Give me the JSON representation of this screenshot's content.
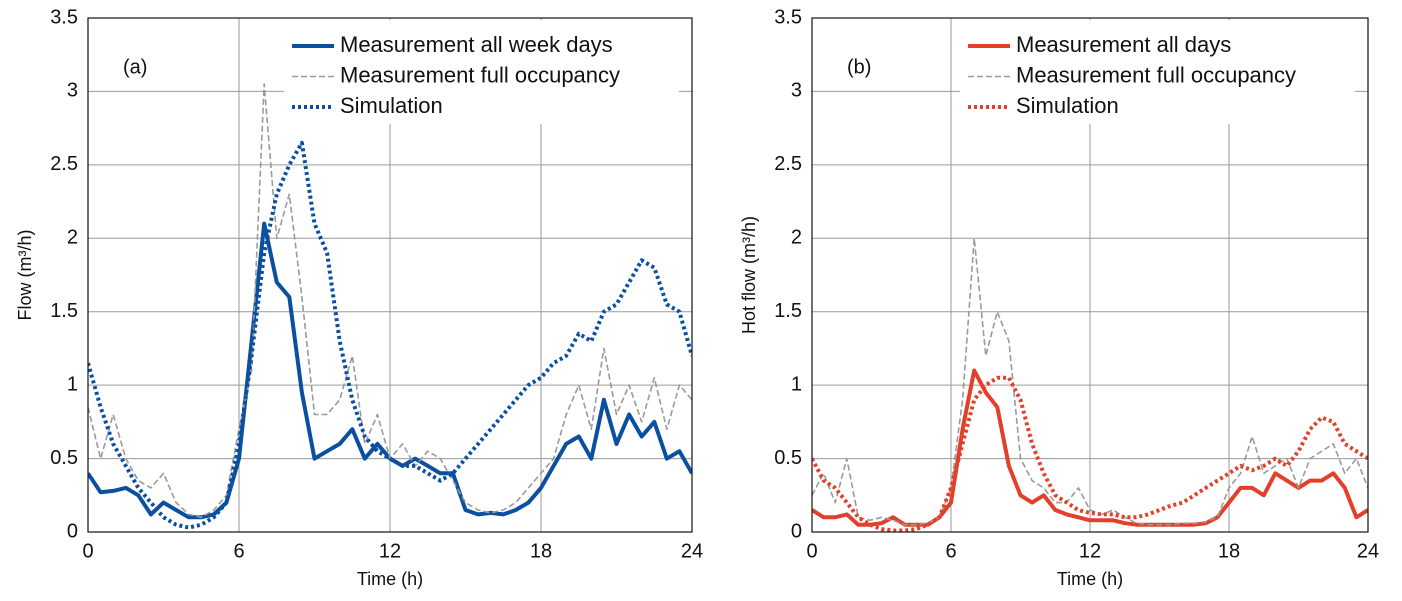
{
  "chart_data": [
    {
      "type": "line",
      "annotation": "(a)",
      "xlabel": "Time (h)",
      "ylabel": "Flow (m³/h)",
      "x": [
        0,
        0.5,
        1,
        1.5,
        2,
        2.5,
        3,
        3.5,
        4,
        4.5,
        5,
        5.5,
        6,
        6.5,
        7,
        7.5,
        8,
        8.5,
        9,
        9.5,
        10,
        10.5,
        11,
        11.5,
        12,
        12.5,
        13,
        13.5,
        14,
        14.5,
        15,
        15.5,
        16,
        16.5,
        17,
        17.5,
        18,
        18.5,
        19,
        19.5,
        20,
        20.5,
        21,
        21.5,
        22,
        22.5,
        23,
        23.5,
        24
      ],
      "xlim": [
        0,
        24
      ],
      "xticks": [
        0,
        6,
        12,
        18,
        24
      ],
      "ylim": [
        0,
        3.5
      ],
      "yticks": [
        0,
        0.5,
        1,
        1.5,
        2,
        2.5,
        3,
        3.5
      ],
      "grid": true,
      "legend": "upper right",
      "series": [
        {
          "name": "Measurement all week days",
          "color": "#0b4fa0",
          "style": "solid",
          "values": [
            0.4,
            0.27,
            0.28,
            0.3,
            0.25,
            0.12,
            0.2,
            0.15,
            0.1,
            0.1,
            0.12,
            0.2,
            0.5,
            1.3,
            2.1,
            1.7,
            1.6,
            0.95,
            0.5,
            0.55,
            0.6,
            0.7,
            0.5,
            0.6,
            0.5,
            0.45,
            0.5,
            0.45,
            0.4,
            0.4,
            0.15,
            0.12,
            0.13,
            0.12,
            0.15,
            0.2,
            0.3,
            0.45,
            0.6,
            0.65,
            0.5,
            0.9,
            0.6,
            0.8,
            0.65,
            0.75,
            0.5,
            0.55,
            0.4
          ]
        },
        {
          "name": "Measurement full occupancy",
          "color": "#9a9a9a",
          "style": "dashed",
          "values": [
            0.85,
            0.5,
            0.8,
            0.5,
            0.35,
            0.3,
            0.4,
            0.2,
            0.12,
            0.1,
            0.15,
            0.25,
            0.7,
            1.1,
            3.05,
            2.0,
            2.3,
            1.6,
            0.8,
            0.8,
            0.9,
            1.2,
            0.6,
            0.8,
            0.5,
            0.6,
            0.45,
            0.55,
            0.5,
            0.35,
            0.2,
            0.15,
            0.13,
            0.15,
            0.2,
            0.3,
            0.4,
            0.5,
            0.8,
            1.0,
            0.7,
            1.25,
            0.8,
            1.0,
            0.75,
            1.05,
            0.7,
            1.0,
            0.9
          ]
        },
        {
          "name": "Simulation",
          "color": "#0b4fa0",
          "style": "dotted",
          "values": [
            1.15,
            0.85,
            0.6,
            0.45,
            0.3,
            0.2,
            0.1,
            0.05,
            0.03,
            0.05,
            0.1,
            0.2,
            0.6,
            1.2,
            1.9,
            2.3,
            2.5,
            2.65,
            2.1,
            1.9,
            1.3,
            0.9,
            0.65,
            0.55,
            0.5,
            0.45,
            0.45,
            0.4,
            0.35,
            0.4,
            0.5,
            0.6,
            0.7,
            0.8,
            0.9,
            1.0,
            1.05,
            1.15,
            1.2,
            1.35,
            1.3,
            1.5,
            1.55,
            1.7,
            1.85,
            1.8,
            1.55,
            1.5,
            1.2
          ]
        }
      ]
    },
    {
      "type": "line",
      "annotation": "(b)",
      "xlabel": "Time (h)",
      "ylabel": "Hot flow (m³/h)",
      "x": [
        0,
        0.5,
        1,
        1.5,
        2,
        2.5,
        3,
        3.5,
        4,
        4.5,
        5,
        5.5,
        6,
        6.5,
        7,
        7.5,
        8,
        8.5,
        9,
        9.5,
        10,
        10.5,
        11,
        11.5,
        12,
        12.5,
        13,
        13.5,
        14,
        14.5,
        15,
        15.5,
        16,
        16.5,
        17,
        17.5,
        18,
        18.5,
        19,
        19.5,
        20,
        20.5,
        21,
        21.5,
        22,
        22.5,
        23,
        23.5,
        24
      ],
      "xlim": [
        0,
        24
      ],
      "xticks": [
        0,
        6,
        12,
        18,
        24
      ],
      "ylim": [
        0,
        3.5
      ],
      "yticks": [
        0,
        0.5,
        1,
        1.5,
        2,
        2.5,
        3,
        3.5
      ],
      "grid": true,
      "legend": "upper right",
      "series": [
        {
          "name": "Measurement all days",
          "color": "#e3402b",
          "style": "solid",
          "values": [
            0.15,
            0.1,
            0.1,
            0.12,
            0.05,
            0.05,
            0.06,
            0.1,
            0.05,
            0.05,
            0.05,
            0.1,
            0.2,
            0.7,
            1.1,
            0.95,
            0.85,
            0.45,
            0.25,
            0.2,
            0.25,
            0.15,
            0.12,
            0.1,
            0.08,
            0.08,
            0.08,
            0.06,
            0.05,
            0.05,
            0.05,
            0.05,
            0.05,
            0.05,
            0.06,
            0.1,
            0.2,
            0.3,
            0.3,
            0.25,
            0.4,
            0.35,
            0.3,
            0.35,
            0.35,
            0.4,
            0.3,
            0.1,
            0.15
          ]
        },
        {
          "name": "Measurement full occupancy",
          "color": "#9a9a9a",
          "style": "dashed",
          "values": [
            0.25,
            0.4,
            0.2,
            0.5,
            0.1,
            0.08,
            0.1,
            0.08,
            0.05,
            0.05,
            0.06,
            0.1,
            0.3,
            0.9,
            2.0,
            1.2,
            1.5,
            1.3,
            0.5,
            0.35,
            0.3,
            0.2,
            0.2,
            0.3,
            0.15,
            0.12,
            0.15,
            0.1,
            0.06,
            0.05,
            0.05,
            0.05,
            0.06,
            0.06,
            0.07,
            0.1,
            0.3,
            0.4,
            0.65,
            0.4,
            0.45,
            0.5,
            0.3,
            0.5,
            0.55,
            0.6,
            0.4,
            0.5,
            0.3
          ]
        },
        {
          "name": "Simulation",
          "color": "#e3402b",
          "style": "dotted",
          "values": [
            0.5,
            0.35,
            0.3,
            0.2,
            0.1,
            0.05,
            0.02,
            0.01,
            0.01,
            0.02,
            0.05,
            0.1,
            0.3,
            0.6,
            0.9,
            1.0,
            1.05,
            1.05,
            0.9,
            0.6,
            0.4,
            0.25,
            0.2,
            0.15,
            0.13,
            0.12,
            0.12,
            0.1,
            0.1,
            0.12,
            0.15,
            0.18,
            0.2,
            0.25,
            0.3,
            0.35,
            0.4,
            0.45,
            0.42,
            0.45,
            0.5,
            0.45,
            0.55,
            0.7,
            0.78,
            0.75,
            0.6,
            0.55,
            0.5
          ]
        }
      ]
    }
  ]
}
